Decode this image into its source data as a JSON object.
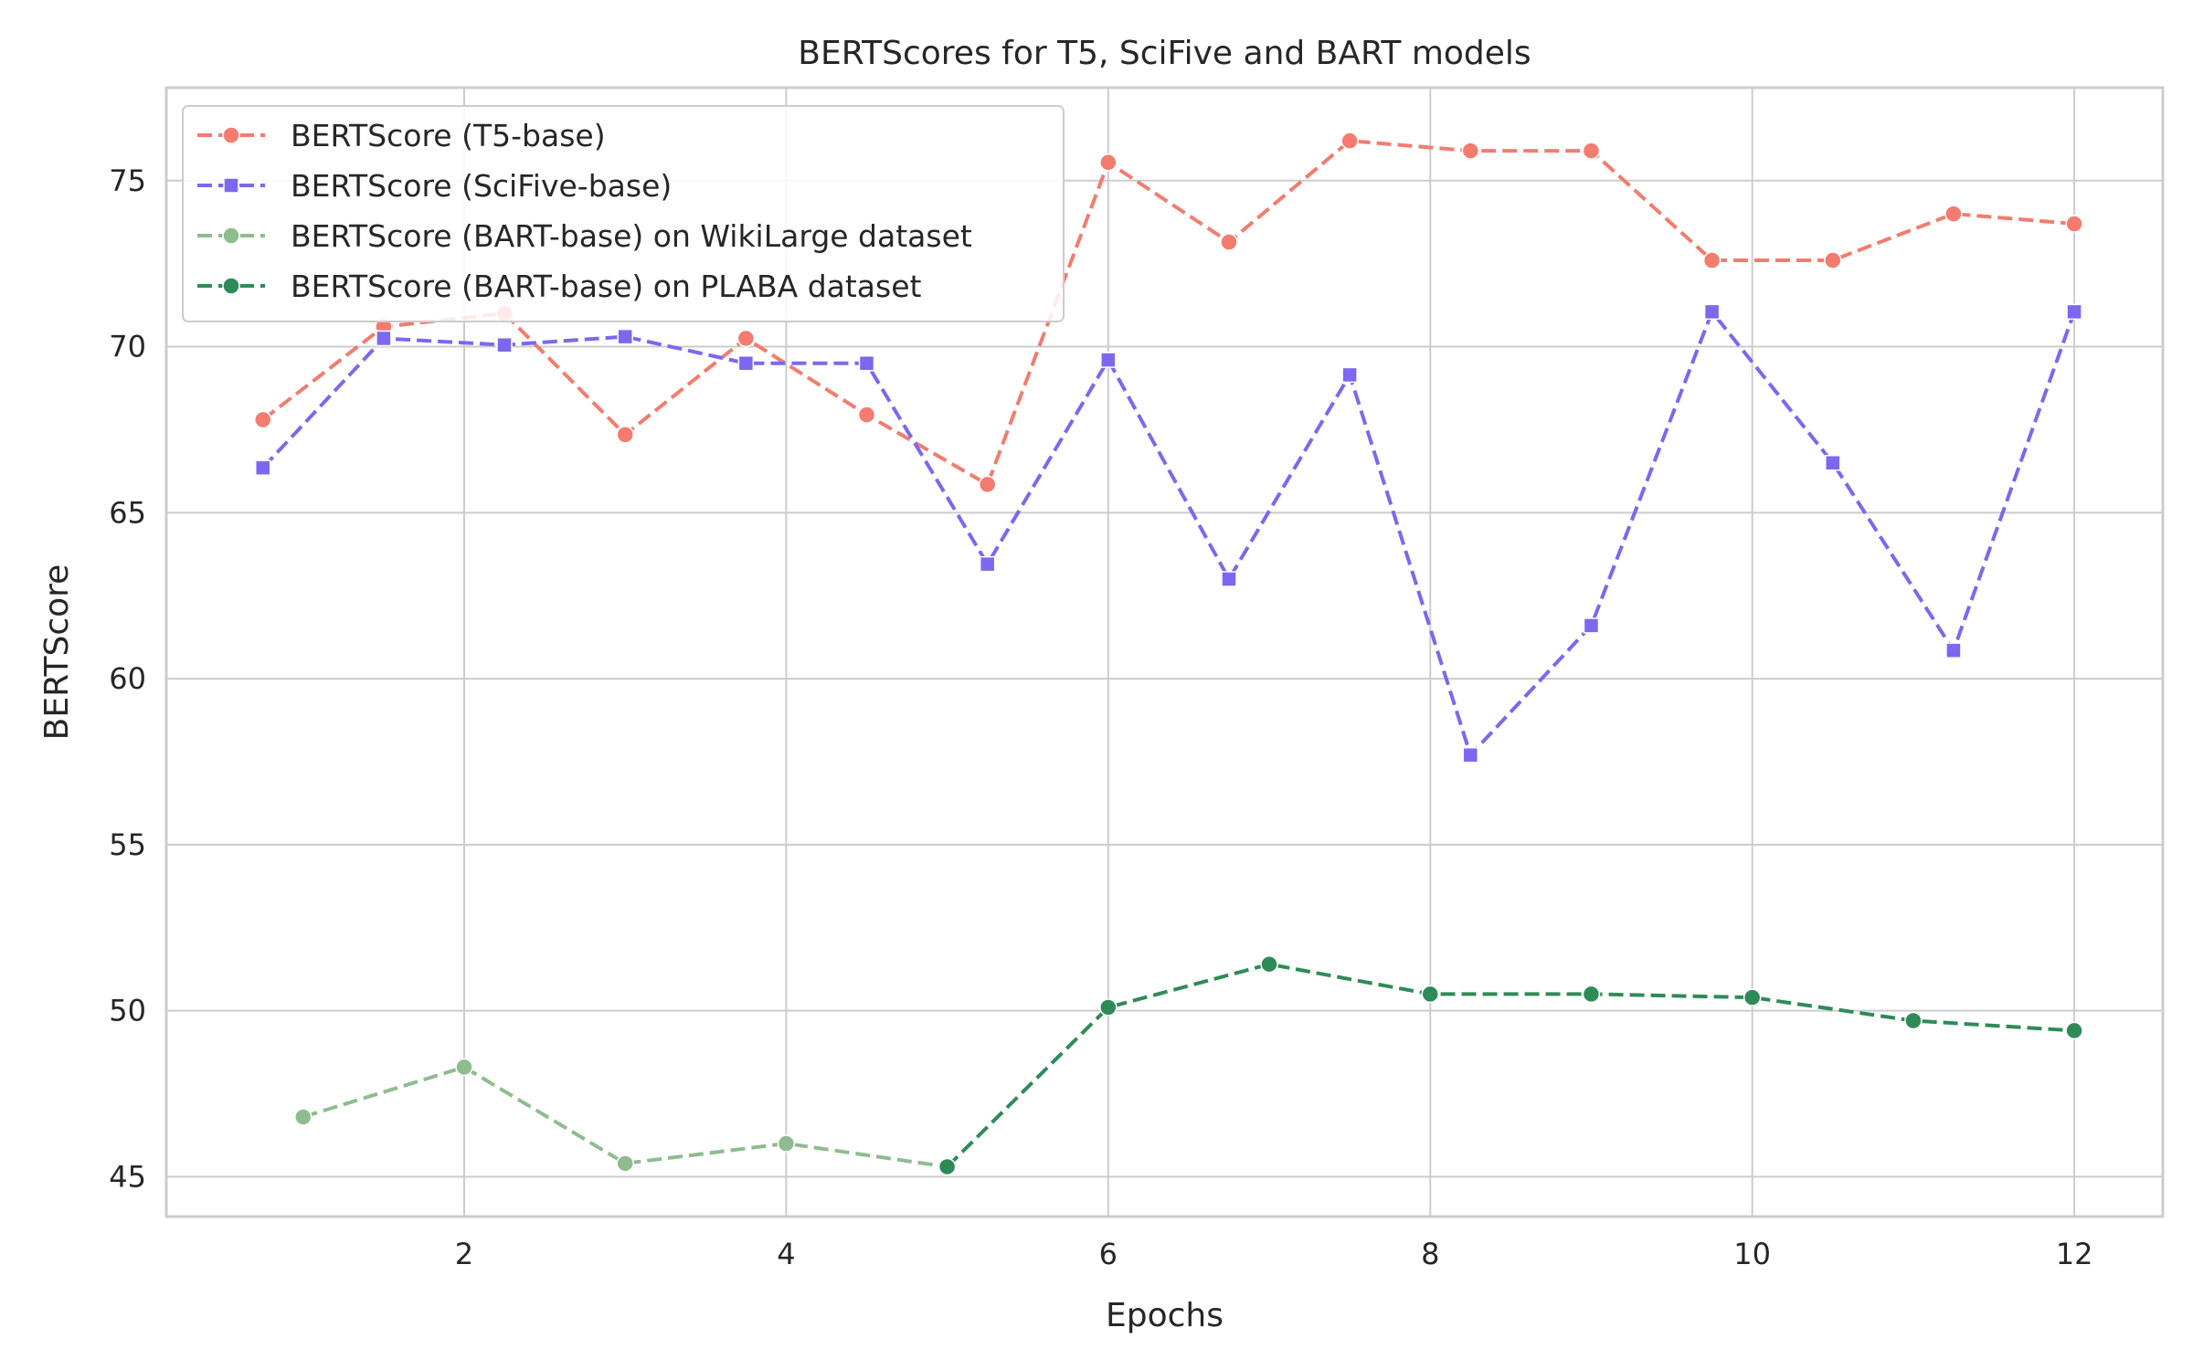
{
  "chart_data": {
    "type": "line",
    "title": "BERTScores for T5, SciFive and BART models",
    "xlabel": "Epochs",
    "ylabel": "BERTScore",
    "xlim": [
      0.15,
      12.55
    ],
    "ylim": [
      43.8,
      77.8
    ],
    "xticks": [
      2,
      4,
      6,
      8,
      10,
      12
    ],
    "yticks": [
      45,
      50,
      55,
      60,
      65,
      70,
      75
    ],
    "grid": true,
    "legend_position": "top-left",
    "series": [
      {
        "name": "BERTScore (T5-base)",
        "color": "#f37c6e",
        "marker": "circle",
        "linestyle": "dashed",
        "x": [
          0.75,
          1.5,
          2.25,
          3.0,
          3.75,
          4.5,
          5.25,
          6.0,
          6.75,
          7.5,
          8.25,
          9.0,
          9.75,
          10.5,
          11.25,
          12.0
        ],
        "y": [
          67.8,
          70.6,
          71.0,
          67.35,
          70.25,
          67.95,
          65.85,
          75.55,
          73.15,
          76.2,
          75.9,
          75.9,
          72.6,
          72.6,
          74.0,
          73.7
        ]
      },
      {
        "name": "BERTScore (SciFive-base)",
        "color": "#7b68ee",
        "marker": "square",
        "linestyle": "dashed",
        "x": [
          0.75,
          1.5,
          2.25,
          3.0,
          3.75,
          4.5,
          5.25,
          6.0,
          6.75,
          7.5,
          8.25,
          9.0,
          9.75,
          10.5,
          11.25,
          12.0
        ],
        "y": [
          66.35,
          70.25,
          70.05,
          70.3,
          69.5,
          69.5,
          63.45,
          69.6,
          63.0,
          69.15,
          57.7,
          61.6,
          71.05,
          66.5,
          60.85,
          71.05
        ]
      },
      {
        "name": "BERTScore (BART-base) on WikiLarge dataset",
        "color": "#8fbc8f",
        "marker": "circle",
        "linestyle": "dashed",
        "x": [
          1,
          2,
          3,
          4,
          5
        ],
        "y": [
          46.8,
          48.3,
          45.4,
          46.0,
          45.3
        ]
      },
      {
        "name": "BERTScore (BART-base) on PLABA dataset",
        "color": "#2e8b57",
        "marker": "circle",
        "linestyle": "dashed",
        "x": [
          5,
          6,
          7,
          8,
          9,
          10,
          11,
          12
        ],
        "y": [
          45.3,
          50.1,
          51.4,
          50.5,
          50.5,
          50.4,
          49.7,
          49.4
        ]
      }
    ]
  }
}
